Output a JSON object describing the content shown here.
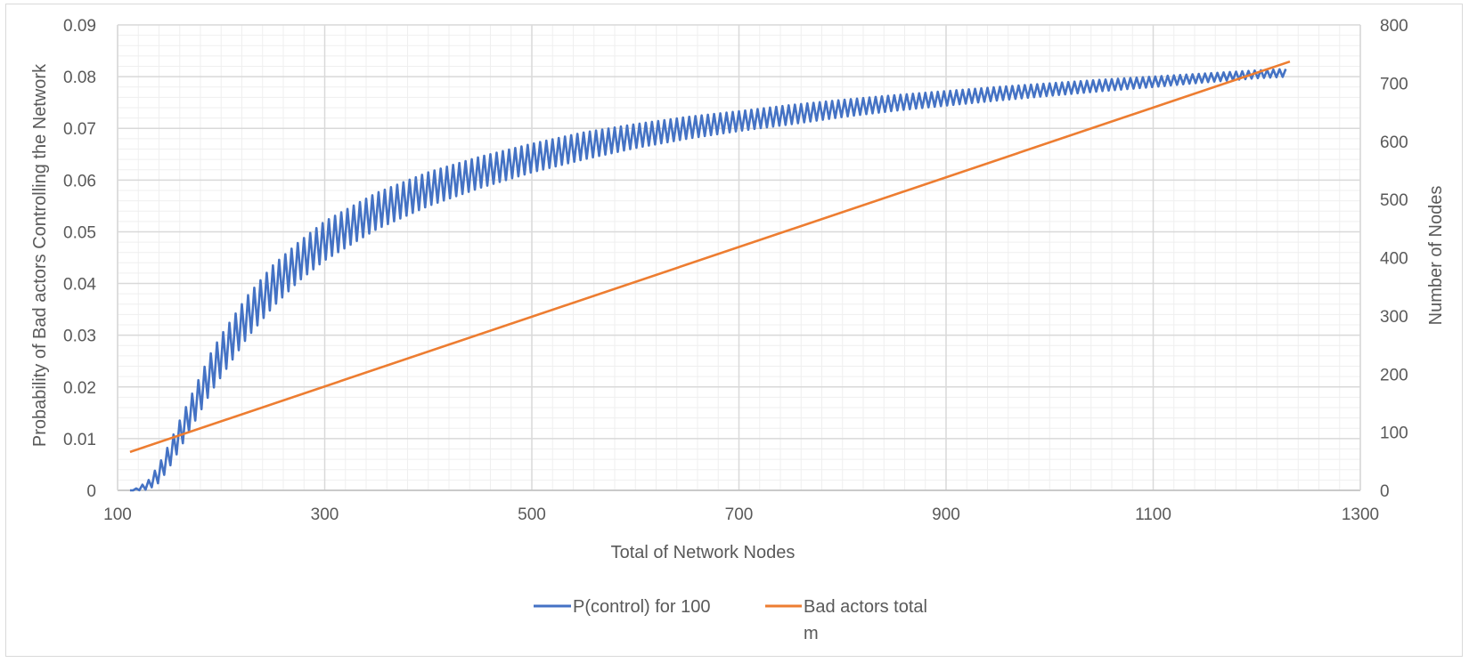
{
  "chart_data": {
    "type": "line",
    "title": "",
    "xlabel": "Total of Network Nodes",
    "ylabel": "Probability of Bad actors Controlling the Network",
    "y2label": "Number of  Nodes",
    "xlim": [
      100,
      1300
    ],
    "ylim": [
      0,
      0.09
    ],
    "y2lim": [
      0,
      800
    ],
    "x_ticks": [
      "100",
      "300",
      "500",
      "700",
      "900",
      "1100",
      "1300"
    ],
    "y_ticks": [
      "0",
      "0.01",
      "0.02",
      "0.03",
      "0.04",
      "0.05",
      "0.06",
      "0.07",
      "0.08",
      "0.09"
    ],
    "y2_ticks": [
      "0",
      "100",
      "200",
      "300",
      "400",
      "500",
      "600",
      "700",
      "800"
    ],
    "grid": true,
    "legend_position": "bottom",
    "series": [
      {
        "name": "P(control) for 100",
        "axis": "left",
        "color": "#4472C4",
        "style": "oscillating band",
        "x": [
          112,
          120,
          130,
          140,
          150,
          160,
          175,
          190,
          200,
          225,
          250,
          275,
          300,
          350,
          400,
          450,
          500,
          550,
          600,
          650,
          700,
          750,
          800,
          850,
          900,
          950,
          1000,
          1050,
          1100,
          1150,
          1200,
          1230
        ],
        "upper": [
          0,
          0.0005,
          0.002,
          0.005,
          0.009,
          0.0135,
          0.02,
          0.0265,
          0.03,
          0.0375,
          0.0435,
          0.048,
          0.052,
          0.0575,
          0.0615,
          0.0645,
          0.067,
          0.0692,
          0.0708,
          0.0722,
          0.0733,
          0.0745,
          0.0755,
          0.0764,
          0.0772,
          0.078,
          0.0787,
          0.0794,
          0.08,
          0.0806,
          0.0812,
          0.0815
        ],
        "lower": [
          0,
          0,
          0.0002,
          0.0015,
          0.0045,
          0.008,
          0.0135,
          0.019,
          0.022,
          0.0295,
          0.0355,
          0.0405,
          0.0445,
          0.0505,
          0.055,
          0.0585,
          0.0615,
          0.064,
          0.0662,
          0.068,
          0.0695,
          0.0708,
          0.0722,
          0.0734,
          0.0744,
          0.0754,
          0.0763,
          0.0772,
          0.078,
          0.0789,
          0.0797,
          0.08
        ]
      },
      {
        "name": "Bad actors total\nm",
        "axis": "right",
        "color": "#ED7D31",
        "x": [
          112,
          1232
        ],
        "values": [
          66,
          737
        ]
      }
    ]
  }
}
